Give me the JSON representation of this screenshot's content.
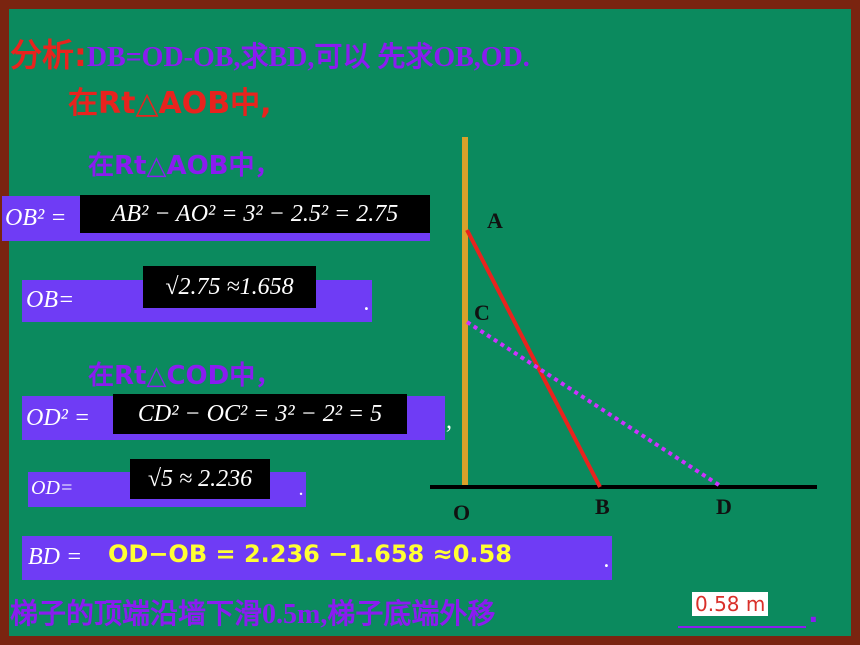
{
  "analysis": {
    "label": "分析:",
    "text": "DB=OD-OB,求BD,可以 先求OB,OD.",
    "line2": "在Rt△AOB中,"
  },
  "solution": {
    "heading1": "在Rt△AOB中，",
    "ob2_lhs": "OB² =",
    "ob2_expr": "AB² − AO² = 3² − 2.5² = 2.75",
    "ob_lhs": "OB=",
    "ob_expr": "√2.75 ≈1.658",
    "ob_end": ".",
    "heading2": "在Rt△COD中，",
    "od2_lhs": "OD² =",
    "od2_expr": "CD² − OC² = 3² − 2² = 5",
    "od2_end": ",",
    "od_lhs": "OD=",
    "od_expr": "√5 ≈ 2.236",
    "od_end": ".",
    "bd_lhs": "BD =",
    "bd_expr": "OD−OB = 2.236 −1.658 ≈0.58",
    "bd_end": "."
  },
  "conclusion": {
    "text": "梯子的顶端沿墙下滑0.5m,梯子底端外移",
    "answer": "0.58 m",
    "end": "."
  },
  "diagram": {
    "labels": [
      "A",
      "C",
      "O",
      "B",
      "D"
    ]
  }
}
